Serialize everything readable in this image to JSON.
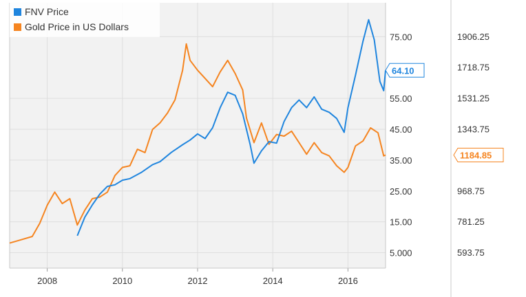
{
  "chart_data": {
    "type": "line",
    "legend_position": "top-left",
    "grid": true,
    "x_range": [
      2007.0,
      2017.0
    ],
    "x_ticks": [
      "2008",
      "2010",
      "2012",
      "2014",
      "2016"
    ],
    "left_axis": {
      "range": [
        0,
        86
      ],
      "ticks": [
        "75.00",
        "55.00",
        "45.00",
        "35.00",
        "25.00",
        "15.00",
        "5.000"
      ]
    },
    "right_axis": {
      "range": [
        498,
        2110
      ],
      "ticks": [
        "1906.25",
        "1718.75",
        "1531.25",
        "1343.75",
        "1184.85",
        "968.75",
        "781.25",
        "593.75"
      ]
    },
    "series": [
      {
        "name": "FNV Price",
        "color": "#1f85de",
        "axis": "left",
        "last_value_label": "64.10",
        "points": [
          [
            2008.8,
            10.5
          ],
          [
            2009.0,
            16.5
          ],
          [
            2009.2,
            20.5
          ],
          [
            2009.4,
            24.0
          ],
          [
            2009.6,
            26.5
          ],
          [
            2009.8,
            27.0
          ],
          [
            2010.0,
            28.5
          ],
          [
            2010.2,
            29.0
          ],
          [
            2010.5,
            31.0
          ],
          [
            2010.8,
            33.5
          ],
          [
            2011.0,
            34.5
          ],
          [
            2011.3,
            37.5
          ],
          [
            2011.6,
            40.0
          ],
          [
            2011.8,
            41.5
          ],
          [
            2012.0,
            43.5
          ],
          [
            2012.2,
            42.0
          ],
          [
            2012.4,
            45.5
          ],
          [
            2012.6,
            52.0
          ],
          [
            2012.8,
            57.0
          ],
          [
            2013.0,
            56.0
          ],
          [
            2013.2,
            50.0
          ],
          [
            2013.4,
            40.0
          ],
          [
            2013.5,
            34.0
          ],
          [
            2013.7,
            38.0
          ],
          [
            2013.9,
            41.0
          ],
          [
            2014.1,
            40.5
          ],
          [
            2014.3,
            47.5
          ],
          [
            2014.5,
            52.0
          ],
          [
            2014.7,
            54.5
          ],
          [
            2014.9,
            52.0
          ],
          [
            2015.1,
            55.5
          ],
          [
            2015.3,
            51.5
          ],
          [
            2015.5,
            50.5
          ],
          [
            2015.7,
            48.5
          ],
          [
            2015.9,
            44.0
          ],
          [
            2016.0,
            52.0
          ],
          [
            2016.2,
            62.5
          ],
          [
            2016.4,
            73.5
          ],
          [
            2016.55,
            80.5
          ],
          [
            2016.7,
            74.0
          ],
          [
            2016.85,
            60.5
          ],
          [
            2016.95,
            57.5
          ],
          [
            2017.0,
            64.1
          ]
        ]
      },
      {
        "name": "Gold Price in US Dollars",
        "color": "#f5841f",
        "axis": "right",
        "last_value_label": "1184.85",
        "points": [
          [
            2007.0,
            650
          ],
          [
            2007.3,
            670
          ],
          [
            2007.6,
            690
          ],
          [
            2007.8,
            770
          ],
          [
            2008.0,
            880
          ],
          [
            2008.2,
            960
          ],
          [
            2008.4,
            890
          ],
          [
            2008.6,
            920
          ],
          [
            2008.8,
            760
          ],
          [
            2009.0,
            850
          ],
          [
            2009.2,
            920
          ],
          [
            2009.4,
            930
          ],
          [
            2009.6,
            960
          ],
          [
            2009.8,
            1060
          ],
          [
            2010.0,
            1110
          ],
          [
            2010.2,
            1120
          ],
          [
            2010.4,
            1220
          ],
          [
            2010.6,
            1200
          ],
          [
            2010.8,
            1340
          ],
          [
            2011.0,
            1380
          ],
          [
            2011.2,
            1440
          ],
          [
            2011.4,
            1520
          ],
          [
            2011.6,
            1700
          ],
          [
            2011.7,
            1860
          ],
          [
            2011.8,
            1760
          ],
          [
            2012.0,
            1700
          ],
          [
            2012.2,
            1650
          ],
          [
            2012.4,
            1600
          ],
          [
            2012.6,
            1690
          ],
          [
            2012.8,
            1760
          ],
          [
            2013.0,
            1680
          ],
          [
            2013.2,
            1580
          ],
          [
            2013.3,
            1410
          ],
          [
            2013.5,
            1260
          ],
          [
            2013.7,
            1380
          ],
          [
            2013.9,
            1250
          ],
          [
            2014.1,
            1310
          ],
          [
            2014.3,
            1300
          ],
          [
            2014.5,
            1330
          ],
          [
            2014.7,
            1260
          ],
          [
            2014.9,
            1190
          ],
          [
            2015.1,
            1260
          ],
          [
            2015.3,
            1200
          ],
          [
            2015.5,
            1180
          ],
          [
            2015.7,
            1120
          ],
          [
            2015.9,
            1080
          ],
          [
            2016.0,
            1110
          ],
          [
            2016.2,
            1240
          ],
          [
            2016.4,
            1270
          ],
          [
            2016.6,
            1350
          ],
          [
            2016.8,
            1320
          ],
          [
            2016.95,
            1180
          ],
          [
            2017.0,
            1184.85
          ]
        ]
      }
    ]
  }
}
